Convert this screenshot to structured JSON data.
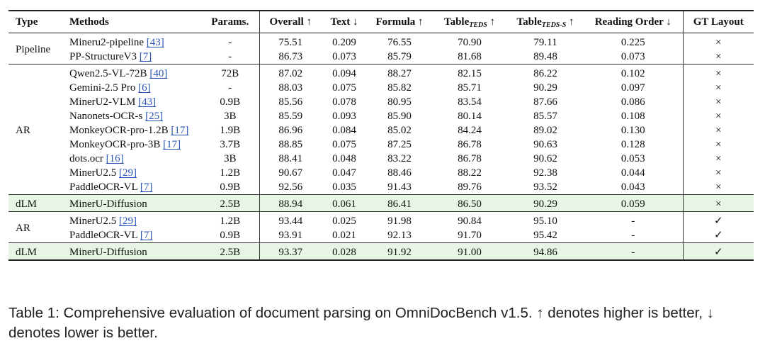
{
  "table": {
    "headers": {
      "type": "Type",
      "methods": "Methods",
      "params": "Params.",
      "overall": "Overall ↑",
      "text": "Text ↓",
      "formula": "Formula ↑",
      "table_teds_main": "Table",
      "table_teds_sub": "TEDS",
      "table_teds_arrow": " ↑",
      "table_teds_s_main": "Table",
      "table_teds_s_sub": "TEDS-S",
      "table_teds_s_arrow": " ↑",
      "reading_order": "Reading Order ↓",
      "gt_layout": "GT Layout"
    },
    "groups": [
      {
        "type": "Pipeline",
        "highlight": false,
        "rows": [
          {
            "method": "Mineru2-pipeline",
            "cite": "[43]",
            "params": "-",
            "overall": "75.51",
            "text": "0.209",
            "formula": "76.55",
            "teds": "70.90",
            "teds_s": "79.11",
            "reading_order": "0.225",
            "gt_layout": "×"
          },
          {
            "method": "PP-StructureV3",
            "cite": "[7]",
            "params": "-",
            "overall": "86.73",
            "text": "0.073",
            "formula": "85.79",
            "teds": "81.68",
            "teds_s": "89.48",
            "reading_order": "0.073",
            "gt_layout": "×"
          }
        ]
      },
      {
        "type": "AR",
        "highlight": false,
        "rows": [
          {
            "method": "Qwen2.5-VL-72B",
            "cite": "[40]",
            "params": "72B",
            "overall": "87.02",
            "text": "0.094",
            "formula": "88.27",
            "teds": "82.15",
            "teds_s": "86.22",
            "reading_order": "0.102",
            "gt_layout": "×"
          },
          {
            "method": "Gemini-2.5 Pro",
            "cite": "[6]",
            "params": "-",
            "overall": "88.03",
            "text": "0.075",
            "formula": "85.82",
            "teds": "85.71",
            "teds_s": "90.29",
            "reading_order": "0.097",
            "gt_layout": "×"
          },
          {
            "method": "MinerU2-VLM",
            "cite": "[43]",
            "params": "0.9B",
            "overall": "85.56",
            "text": "0.078",
            "formula": "80.95",
            "teds": "83.54",
            "teds_s": "87.66",
            "reading_order": "0.086",
            "gt_layout": "×"
          },
          {
            "method": "Nanonets-OCR-s",
            "cite": "[25]",
            "params": "3B",
            "overall": "85.59",
            "text": "0.093",
            "formula": "85.90",
            "teds": "80.14",
            "teds_s": "85.57",
            "reading_order": "0.108",
            "gt_layout": "×"
          },
          {
            "method": "MonkeyOCR-pro-1.2B",
            "cite": "[17]",
            "params": "1.9B",
            "overall": "86.96",
            "text": "0.084",
            "formula": "85.02",
            "teds": "84.24",
            "teds_s": "89.02",
            "reading_order": "0.130",
            "gt_layout": "×"
          },
          {
            "method": "MonkeyOCR-pro-3B",
            "cite": "[17]",
            "params": "3.7B",
            "overall": "88.85",
            "text": "0.075",
            "formula": "87.25",
            "teds": "86.78",
            "teds_s": "90.63",
            "reading_order": "0.128",
            "gt_layout": "×"
          },
          {
            "method": "dots.ocr",
            "cite": "[16]",
            "params": "3B",
            "overall": "88.41",
            "text": "0.048",
            "formula": "83.22",
            "teds": "86.78",
            "teds_s": "90.62",
            "reading_order": "0.053",
            "gt_layout": "×"
          },
          {
            "method": "MinerU2.5",
            "cite": "[29]",
            "params": "1.2B",
            "overall": "90.67",
            "text": "0.047",
            "formula": "88.46",
            "teds": "88.22",
            "teds_s": "92.38",
            "reading_order": "0.044",
            "gt_layout": "×"
          },
          {
            "method": "PaddleOCR-VL",
            "cite": "[7]",
            "params": "0.9B",
            "overall": "92.56",
            "text": "0.035",
            "formula": "91.43",
            "teds": "89.76",
            "teds_s": "93.52",
            "reading_order": "0.043",
            "gt_layout": "×"
          }
        ]
      },
      {
        "type": "dLM",
        "highlight": true,
        "rows": [
          {
            "method": "MinerU-Diffusion",
            "cite": "",
            "params": "2.5B",
            "overall": "88.94",
            "text": "0.061",
            "formula": "86.41",
            "teds": "86.50",
            "teds_s": "90.29",
            "reading_order": "0.059",
            "gt_layout": "×"
          }
        ]
      },
      {
        "type": "AR",
        "highlight": false,
        "rows": [
          {
            "method": "MinerU2.5",
            "cite": "[29]",
            "params": "1.2B",
            "overall": "93.44",
            "text": "0.025",
            "formula": "91.98",
            "teds": "90.84",
            "teds_s": "95.10",
            "reading_order": "-",
            "gt_layout": "✓"
          },
          {
            "method": "PaddleOCR-VL",
            "cite": "[7]",
            "params": "0.9B",
            "overall": "93.91",
            "text": "0.021",
            "formula": "92.13",
            "teds": "91.70",
            "teds_s": "95.42",
            "reading_order": "-",
            "gt_layout": "✓"
          }
        ]
      },
      {
        "type": "dLM",
        "highlight": true,
        "rows": [
          {
            "method": "MinerU-Diffusion",
            "cite": "",
            "params": "2.5B",
            "overall": "93.37",
            "text": "0.028",
            "formula": "91.92",
            "teds": "91.00",
            "teds_s": "94.86",
            "reading_order": "-",
            "gt_layout": "✓"
          }
        ]
      }
    ]
  },
  "caption": "Table 1: Comprehensive evaluation of document parsing on OmniDocBench v1.5. ↑ denotes higher is better, ↓ denotes lower is better."
}
